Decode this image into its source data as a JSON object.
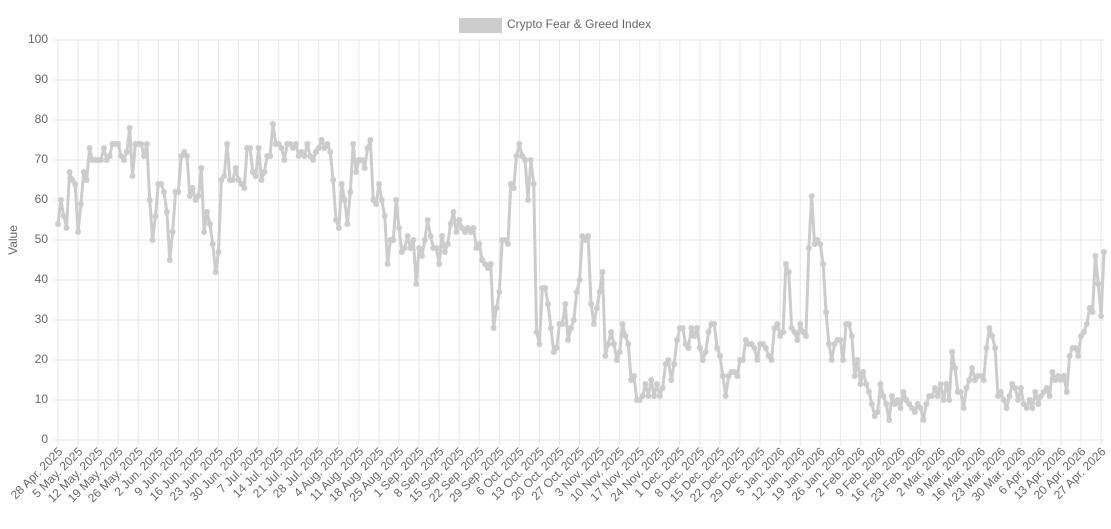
{
  "chart_data": {
    "type": "line",
    "y_label": "Value",
    "grid": true,
    "legend": "top",
    "ylim": [
      0,
      100
    ],
    "yticks": [
      0,
      10,
      20,
      30,
      40,
      50,
      60,
      70,
      80,
      90,
      100
    ],
    "categories": [
      "28 Apr. 2025",
      null,
      null,
      null,
      null,
      null,
      null,
      "5 May. 2025",
      null,
      null,
      null,
      null,
      null,
      null,
      "12 May. 2025",
      null,
      null,
      null,
      null,
      null,
      null,
      "19 May. 2025",
      null,
      null,
      null,
      null,
      null,
      null,
      "26 May. 2025",
      null,
      null,
      null,
      null,
      null,
      null,
      "2 Jun. 2025",
      null,
      null,
      null,
      null,
      null,
      null,
      "9 Jun. 2025",
      null,
      null,
      null,
      null,
      null,
      null,
      "16 Jun. 2025",
      null,
      null,
      null,
      null,
      null,
      null,
      "23 Jun. 2025",
      null,
      null,
      null,
      null,
      null,
      null,
      "30 Jun. 2025",
      null,
      null,
      null,
      null,
      null,
      null,
      "7 Jul. 2025",
      null,
      null,
      null,
      null,
      null,
      null,
      "14 Jul. 2025",
      null,
      null,
      null,
      null,
      null,
      null,
      "21 Jul. 2025",
      null,
      null,
      null,
      null,
      null,
      null,
      "28 Jul. 2025",
      null,
      null,
      null,
      null,
      null,
      null,
      "4 Aug. 2025",
      null,
      null,
      null,
      null,
      null,
      null,
      "11 Aug. 2025",
      null,
      null,
      null,
      null,
      null,
      null,
      "18 Aug. 2025",
      null,
      null,
      null,
      null,
      null,
      null,
      "25 Aug. 2025",
      null,
      null,
      null,
      null,
      null,
      null,
      "1 Sep. 2025",
      null,
      null,
      null,
      null,
      null,
      null,
      "8 Sep. 2025",
      null,
      null,
      null,
      null,
      null,
      null,
      "15 Sep. 2025",
      null,
      null,
      null,
      null,
      null,
      null,
      "22 Sep. 2025",
      null,
      null,
      null,
      null,
      null,
      null,
      "29 Sep. 2025",
      null,
      null,
      null,
      null,
      null,
      null,
      "6 Oct. 2025",
      null,
      null,
      null,
      null,
      null,
      null,
      "13 Oct. 2025",
      null,
      null,
      null,
      null,
      null,
      null,
      "20 Oct. 2025",
      null,
      null,
      null,
      null,
      null,
      null,
      "27 Oct. 2025",
      null,
      null,
      null,
      null,
      null,
      null,
      "3 Nov. 2025",
      null,
      null,
      null,
      null,
      null,
      null,
      "10 Nov. 2025",
      null,
      null,
      null,
      null,
      null,
      null,
      "17 Nov. 2025",
      null,
      null,
      null,
      null,
      null,
      null,
      "24 Nov. 2025",
      null,
      null,
      null,
      null,
      null,
      null,
      "1 Dec. 2025",
      null,
      null,
      null,
      null,
      null,
      null,
      "8 Dec. 2025",
      null,
      null,
      null,
      null,
      null,
      null,
      "15 Dec. 2025",
      null,
      null,
      null,
      null,
      null,
      null,
      "22 Dec. 2025",
      null,
      null,
      null,
      null,
      null,
      null,
      "29 Dec. 2025",
      null,
      null,
      null,
      null,
      null,
      null,
      "5 Jan. 2026",
      null,
      null,
      null,
      null,
      null,
      null,
      "12 Jan. 2026",
      null,
      null,
      null,
      null,
      null,
      null,
      "19 Jan. 2026",
      null,
      null,
      null,
      null,
      null,
      null,
      "26 Jan. 2026",
      null,
      null,
      null,
      null,
      null,
      null,
      "2 Feb. 2026",
      null,
      null,
      null,
      null,
      null,
      null,
      "9 Feb. 2026",
      null,
      null,
      null,
      null,
      null,
      null,
      "16 Feb. 2026",
      null,
      null,
      null,
      null,
      null,
      null,
      "23 Feb. 2026",
      null,
      null,
      null,
      null,
      null,
      null,
      "2 Mar. 2026",
      null,
      null,
      null,
      null,
      null,
      null,
      "9 Mar. 2026",
      null,
      null,
      null,
      null,
      null,
      null,
      "16 Mar. 2026",
      null,
      null,
      null,
      null,
      null,
      null,
      "23 Mar. 2026",
      null,
      null,
      null,
      null,
      null,
      null,
      "30 Mar. 2026",
      null,
      null,
      null,
      null,
      null,
      null,
      "6 Apr. 2026",
      null,
      null,
      null,
      null,
      null,
      null,
      "13 Apr. 2026",
      null,
      null,
      null,
      null,
      null,
      null,
      "20 Apr. 2026",
      null,
      null,
      null,
      null,
      null,
      null,
      "27 Apr. 2026",
      null
    ],
    "series": [
      {
        "name": "Crypto Fear & Greed Index",
        "color": "#cccccc",
        "values": [
          54,
          60,
          56,
          53,
          67,
          65,
          64,
          52,
          59,
          67,
          65,
          73,
          70,
          70,
          70,
          70,
          73,
          70,
          71,
          74,
          74,
          74,
          71,
          70,
          72,
          78,
          66,
          74,
          74,
          74,
          71,
          74,
          60,
          50,
          56,
          64,
          64,
          62,
          57,
          45,
          52,
          62,
          62,
          71,
          72,
          71,
          61,
          63,
          60,
          61,
          68,
          52,
          57,
          54,
          49,
          42,
          47,
          65,
          66,
          74,
          65,
          65,
          68,
          65,
          64,
          63,
          73,
          73,
          67,
          66,
          73,
          65,
          67,
          71,
          71,
          79,
          74,
          74,
          73,
          70,
          74,
          74,
          73,
          74,
          71,
          72,
          71,
          74,
          71,
          70,
          72,
          73,
          75,
          73,
          74,
          72,
          65,
          55,
          53,
          64,
          60,
          54,
          62,
          74,
          67,
          70,
          70,
          68,
          73,
          75,
          60,
          59,
          64,
          60,
          56,
          44,
          50,
          50,
          60,
          53,
          47,
          48,
          51,
          48,
          50,
          39,
          48,
          46,
          50,
          55,
          51,
          48,
          48,
          44,
          51,
          47,
          49,
          54,
          57,
          52,
          55,
          53,
          52,
          53,
          52,
          53,
          48,
          49,
          45,
          44,
          43,
          44,
          28,
          33,
          37,
          50,
          50,
          49,
          64,
          63,
          71,
          74,
          71,
          70,
          60,
          70,
          64,
          27,
          24,
          38,
          38,
          34,
          28,
          22,
          23,
          29,
          29,
          34,
          25,
          28,
          30,
          37,
          40,
          51,
          50,
          51,
          34,
          29,
          33,
          37,
          42,
          21,
          24,
          27,
          24,
          20,
          22,
          29,
          26,
          24,
          15,
          16,
          10,
          10,
          11,
          14,
          11,
          15,
          11,
          14,
          11,
          13,
          19,
          20,
          15,
          19,
          25,
          28,
          28,
          24,
          23,
          28,
          26,
          28,
          23,
          20,
          22,
          27,
          29,
          29,
          23,
          21,
          16,
          11,
          16,
          17,
          17,
          16,
          20,
          20,
          25,
          24,
          24,
          23,
          20,
          24,
          24,
          23,
          21,
          20,
          28,
          29,
          26,
          27,
          44,
          42,
          28,
          27,
          25,
          29,
          27,
          26,
          48,
          61,
          49,
          50,
          49,
          44,
          32,
          24,
          20,
          24,
          25,
          25,
          20,
          29,
          29,
          26,
          16,
          20,
          14,
          17,
          14,
          12,
          9,
          6,
          7,
          14,
          11,
          9,
          5,
          11,
          9,
          10,
          8,
          12,
          10,
          9,
          8,
          7,
          9,
          8,
          5,
          9,
          11,
          11,
          13,
          11,
          14,
          10,
          14,
          10,
          22,
          18,
          12,
          12,
          8,
          13,
          15,
          18,
          15,
          16,
          16,
          15,
          23,
          28,
          26,
          23,
          11,
          12,
          10,
          8,
          11,
          14,
          13,
          10,
          13,
          9,
          8,
          10,
          8,
          12,
          9,
          11,
          12,
          13,
          11,
          17,
          15,
          16,
          15,
          16,
          12,
          21,
          23,
          23,
          21,
          26,
          27,
          29,
          33,
          32,
          46,
          39,
          31,
          47
        ]
      }
    ]
  }
}
